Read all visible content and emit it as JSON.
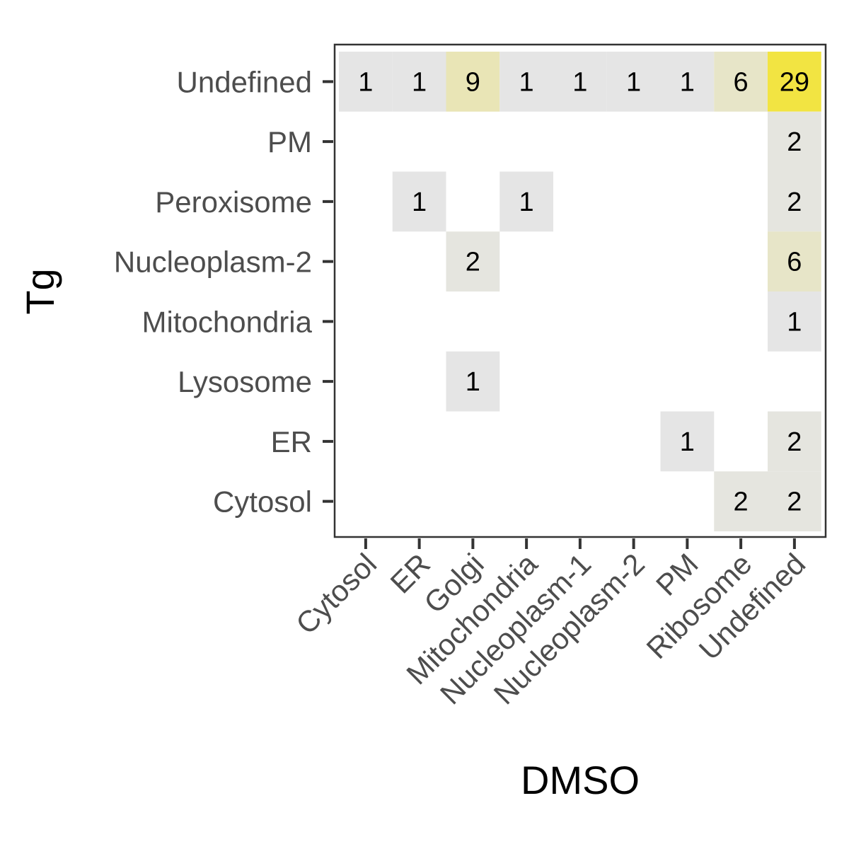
{
  "chart_data": {
    "type": "heatmap",
    "title": "",
    "xlabel": "DMSO",
    "ylabel": "Tg",
    "x_categories": [
      "Cytosol",
      "ER",
      "Golgi",
      "Mitochondria",
      "Nucleoplasm-1",
      "Nucleoplasm-2",
      "PM",
      "Ribosome",
      "Undefined"
    ],
    "y_categories": [
      "Cytosol",
      "ER",
      "Lysosome",
      "Mitochondria",
      "Nucleoplasm-2",
      "Peroxisome",
      "PM",
      "Undefined"
    ],
    "cells": [
      {
        "x": "Cytosol",
        "y": "Undefined",
        "value": 1
      },
      {
        "x": "ER",
        "y": "Undefined",
        "value": 1
      },
      {
        "x": "Golgi",
        "y": "Undefined",
        "value": 9
      },
      {
        "x": "Mitochondria",
        "y": "Undefined",
        "value": 1
      },
      {
        "x": "Nucleoplasm-1",
        "y": "Undefined",
        "value": 1
      },
      {
        "x": "Nucleoplasm-2",
        "y": "Undefined",
        "value": 1
      },
      {
        "x": "PM",
        "y": "Undefined",
        "value": 1
      },
      {
        "x": "Ribosome",
        "y": "Undefined",
        "value": 6
      },
      {
        "x": "Undefined",
        "y": "Undefined",
        "value": 29
      },
      {
        "x": "Undefined",
        "y": "PM",
        "value": 2
      },
      {
        "x": "ER",
        "y": "Peroxisome",
        "value": 1
      },
      {
        "x": "Mitochondria",
        "y": "Peroxisome",
        "value": 1
      },
      {
        "x": "Undefined",
        "y": "Peroxisome",
        "value": 2
      },
      {
        "x": "Golgi",
        "y": "Nucleoplasm-2",
        "value": 2
      },
      {
        "x": "Undefined",
        "y": "Nucleoplasm-2",
        "value": 6
      },
      {
        "x": "Undefined",
        "y": "Mitochondria",
        "value": 1
      },
      {
        "x": "Golgi",
        "y": "Lysosome",
        "value": 1
      },
      {
        "x": "PM",
        "y": "ER",
        "value": 1
      },
      {
        "x": "Undefined",
        "y": "ER",
        "value": 2
      },
      {
        "x": "Ribosome",
        "y": "Cytosol",
        "value": 2
      },
      {
        "x": "Undefined",
        "y": "Cytosol",
        "value": 2
      }
    ],
    "color_scale": {
      "low": "#e5e5e5",
      "high": "#f2e442"
    },
    "value_range": [
      1,
      29
    ],
    "grid": false,
    "legend": "none"
  }
}
